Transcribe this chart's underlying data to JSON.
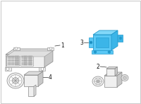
{
  "bg_color": "#ffffff",
  "border_color": "#cccccc",
  "line_color": "#888888",
  "line_color_dark": "#555555",
  "fill_light": "#f0f0f0",
  "fill_mid": "#dcdcdc",
  "fill_dark": "#c8c8c8",
  "fill_white": "#ffffff",
  "highlight_main": "#5ac8f5",
  "highlight_light": "#82d8f8",
  "highlight_dark": "#2299cc",
  "highlight_mid": "#3bb5e8",
  "label_fontsize": 5.5,
  "lw": 0.5
}
